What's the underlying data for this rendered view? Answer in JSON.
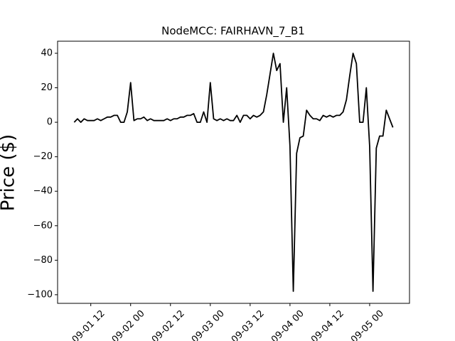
{
  "chart_data": {
    "type": "line",
    "title": "NodeMCC: FAIRHAVN_7_B1",
    "y_label": "Price ($)",
    "color": "#000000",
    "x": [
      "09-01 07",
      "09-01 08",
      "09-01 09",
      "09-01 10",
      "09-01 11",
      "09-01 12",
      "09-01 13",
      "09-01 14",
      "09-01 15",
      "09-01 16",
      "09-01 17",
      "09-01 18",
      "09-01 19",
      "09-01 20",
      "09-01 21",
      "09-01 22",
      "09-01 23",
      "09-02 00",
      "09-02 01",
      "09-02 02",
      "09-02 03",
      "09-02 04",
      "09-02 05",
      "09-02 06",
      "09-02 07",
      "09-02 08",
      "09-02 09",
      "09-02 10",
      "09-02 11",
      "09-02 12",
      "09-02 13",
      "09-02 14",
      "09-02 15",
      "09-02 16",
      "09-02 17",
      "09-02 18",
      "09-02 19",
      "09-02 20",
      "09-02 21",
      "09-02 22",
      "09-02 23",
      "09-03 00",
      "09-03 01",
      "09-03 02",
      "09-03 03",
      "09-03 04",
      "09-03 05",
      "09-03 06",
      "09-03 07",
      "09-03 08",
      "09-03 09",
      "09-03 10",
      "09-03 11",
      "09-03 12",
      "09-03 13",
      "09-03 14",
      "09-03 15",
      "09-03 16",
      "09-03 17",
      "09-03 18",
      "09-03 19",
      "09-03 20",
      "09-03 21",
      "09-03 22",
      "09-03 23",
      "09-04 00",
      "09-04 01",
      "09-04 02",
      "09-04 03",
      "09-04 04",
      "09-04 05",
      "09-04 06",
      "09-04 07",
      "09-04 08",
      "09-04 09",
      "09-04 10",
      "09-04 11",
      "09-04 12",
      "09-04 13",
      "09-04 14",
      "09-04 15",
      "09-04 16",
      "09-04 17",
      "09-04 18",
      "09-04 19",
      "09-04 20",
      "09-04 21",
      "09-04 22",
      "09-04 23",
      "09-05 00",
      "09-05 01",
      "09-05 02",
      "09-05 03",
      "09-05 04",
      "09-05 05",
      "09-05 06",
      "09-05 07"
    ],
    "values": [
      0,
      2,
      0,
      2,
      1,
      1,
      1,
      2,
      1,
      2,
      3,
      3,
      4,
      4,
      0,
      0,
      6,
      23,
      1,
      2,
      2,
      3,
      1,
      2,
      1,
      1,
      1,
      1,
      2,
      1,
      2,
      2,
      3,
      3,
      4,
      4,
      5,
      0,
      0,
      6,
      0,
      23,
      2,
      1,
      2,
      1,
      2,
      1,
      1,
      4,
      0,
      4,
      4,
      2,
      4,
      3,
      4,
      6,
      16,
      28,
      40,
      30,
      34,
      0,
      20,
      -14,
      -98,
      -18,
      -9,
      -8,
      7,
      4,
      2,
      2,
      1,
      4,
      3,
      4,
      3,
      4,
      4,
      6,
      13,
      27,
      40,
      34,
      0,
      0,
      20,
      -14,
      -98,
      -15,
      -8,
      -8,
      7,
      2,
      -3
    ],
    "xlim": [
      "09-01 02",
      "09-05 12"
    ],
    "xticks": [
      "09-01 12",
      "09-02 00",
      "09-02 12",
      "09-03 00",
      "09-03 12",
      "09-04 00",
      "09-04 12",
      "09-05 00"
    ],
    "ylim": [
      -105,
      47
    ],
    "yticks": [
      {
        "value": -100,
        "label": "−100"
      },
      {
        "value": -80,
        "label": "−80"
      },
      {
        "value": -60,
        "label": "−60"
      },
      {
        "value": -40,
        "label": "−40"
      },
      {
        "value": -20,
        "label": "−20"
      },
      0,
      20,
      40
    ]
  }
}
